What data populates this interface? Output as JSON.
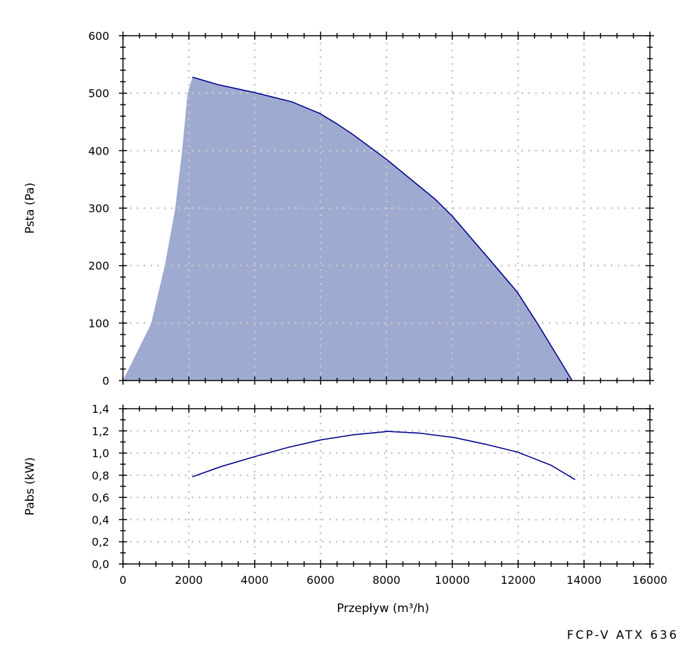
{
  "chart_data": [
    {
      "type": "area",
      "ylabel": "Psta (Pa)",
      "xlim": [
        0,
        16000
      ],
      "ylim": [
        0,
        600
      ],
      "xticks": [
        0,
        2000,
        4000,
        6000,
        8000,
        10000,
        12000,
        14000,
        16000
      ],
      "yticks": [
        "0",
        "100",
        "200",
        "300",
        "400",
        "500",
        "600"
      ],
      "grid": true,
      "series": [
        {
          "x": [
            2107,
            2880,
            4000,
            5130,
            5715,
            5970,
            6490,
            7010,
            8000,
            9470,
            10000,
            11290,
            11970,
            12600,
            13640
          ],
          "y": [
            528,
            515,
            501,
            485,
            471,
            465,
            447,
            427,
            385,
            316,
            286,
            200,
            154,
            98,
            0
          ]
        }
      ],
      "fill_left_boundary": {
        "x": [
          0,
          855,
          1270,
          1585,
          1795,
          1960,
          2107
        ],
        "y": [
          0,
          99,
          200,
          299,
          399,
          499,
          528
        ]
      },
      "colors": {
        "line": "#00008b",
        "fill": "#9eaad0",
        "grid": "#c8c8c8"
      }
    },
    {
      "type": "line",
      "xlabel": "Przepływ (m³/h)",
      "ylabel": "Pabs (kW)",
      "xlim": [
        0,
        16000
      ],
      "ylim": [
        0,
        1.4
      ],
      "xticks": [
        "0",
        "2000",
        "4000",
        "6000",
        "8000",
        "10000",
        "12000",
        "14000",
        "16000"
      ],
      "yticks": [
        "0,0",
        "0,2",
        "0,4",
        "0,6",
        "0,8",
        "1,0",
        "1,2",
        "1,4"
      ],
      "grid": true,
      "series": [
        {
          "x": [
            2107,
            3000,
            4030,
            5000,
            6030,
            7000,
            8050,
            9000,
            10050,
            11000,
            11970,
            13000,
            13730
          ],
          "y": [
            0.786,
            0.88,
            0.97,
            1.05,
            1.12,
            1.165,
            1.195,
            1.18,
            1.14,
            1.08,
            1.01,
            0.89,
            0.76
          ]
        }
      ],
      "colors": {
        "line": "#00008b",
        "grid": "#c8c8c8"
      }
    }
  ],
  "model_label": "FCP-V ATX 636"
}
